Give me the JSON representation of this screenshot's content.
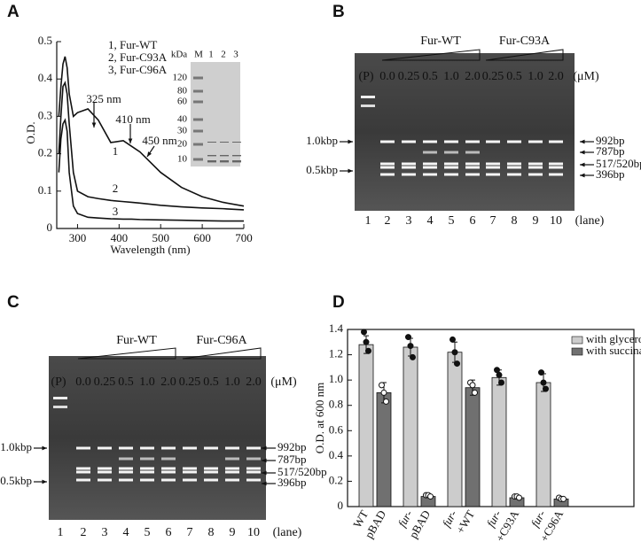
{
  "panel_labels": [
    "A",
    "B",
    "C",
    "D"
  ],
  "chart_data": [
    {
      "type": "line",
      "x_label": "Wavelength (nm)",
      "y_label": "O.D.",
      "x": [
        255,
        260,
        265,
        270,
        275,
        280,
        290,
        300,
        325,
        350,
        380,
        410,
        430,
        450,
        500,
        550,
        600,
        650,
        700
      ],
      "series": [
        {
          "name": "1, Fur-WT",
          "color": "#111111",
          "values": [
            0.3,
            0.38,
            0.44,
            0.46,
            0.43,
            0.36,
            0.3,
            0.31,
            0.32,
            0.29,
            0.23,
            0.235,
            0.22,
            0.205,
            0.15,
            0.11,
            0.085,
            0.07,
            0.06
          ]
        },
        {
          "name": "2, Fur-C93A",
          "color": "#111111",
          "values": [
            0.2,
            0.3,
            0.38,
            0.39,
            0.36,
            0.28,
            0.15,
            0.1,
            0.085,
            0.08,
            0.075,
            0.072,
            0.07,
            0.068,
            0.062,
            0.058,
            0.055,
            0.053,
            0.05
          ]
        },
        {
          "name": "3, Fur-C96A",
          "color": "#111111",
          "values": [
            0.15,
            0.24,
            0.28,
            0.29,
            0.26,
            0.15,
            0.06,
            0.04,
            0.03,
            0.028,
            0.026,
            0.025,
            0.025,
            0.024,
            0.023,
            0.022,
            0.021,
            0.02,
            0.02
          ]
        }
      ],
      "xlim": [
        250,
        700
      ],
      "xticks": [
        300,
        400,
        500,
        600,
        700
      ],
      "ylim": [
        0,
        0.5
      ],
      "yticks": [
        0,
        0.1,
        0.2,
        0.3,
        0.4,
        0.5
      ],
      "annotations": [
        "325 nm",
        "410 nm",
        "450 nm",
        "1",
        "2",
        "3"
      ],
      "inset": {
        "unit": "kDa",
        "lanes": [
          "M",
          "1",
          "2",
          "3"
        ],
        "markers": [
          120,
          80,
          60,
          40,
          30,
          20,
          10
        ]
      }
    },
    {
      "type": "bar",
      "y_label": "O.D. at 600 nm",
      "categories": [
        [
          "WT",
          "pBAD"
        ],
        [
          "fur-",
          "pBAD"
        ],
        [
          "fur-",
          "+WT"
        ],
        [
          "fur-",
          "+C93A"
        ],
        [
          "fur-",
          "+C96A"
        ]
      ],
      "series": [
        {
          "name": "with glycerol",
          "color": "#cccccc",
          "values": [
            1.28,
            1.26,
            1.22,
            1.02,
            0.98
          ],
          "errors": [
            0.07,
            0.07,
            0.08,
            0.06,
            0.07
          ],
          "points": [
            [
              1.38,
              1.3,
              1.23
            ],
            [
              1.34,
              1.27,
              1.18
            ],
            [
              1.32,
              1.22,
              1.13
            ],
            [
              1.08,
              1.04,
              0.98
            ],
            [
              1.06,
              0.98,
              0.93
            ]
          ]
        },
        {
          "name": "with succinate",
          "color": "#707070",
          "values": [
            0.9,
            0.08,
            0.94,
            0.07,
            0.06
          ],
          "errors": [
            0.08,
            0.01,
            0.06,
            0.01,
            0.01
          ],
          "points": [
            [
              0.96,
              0.9,
              0.83
            ],
            [
              0.09,
              0.09,
              0.08
            ],
            [
              0.98,
              0.96,
              0.9
            ],
            [
              0.08,
              0.08,
              0.07
            ],
            [
              0.07,
              0.06,
              0.06
            ]
          ]
        }
      ],
      "ylim": [
        0,
        1.4
      ],
      "yticks": [
        0,
        0.2,
        0.4,
        0.6,
        0.8,
        {
          "value": 1,
          "label": "1.0"
        },
        1.2,
        1.4
      ],
      "legend": "top-right"
    }
  ],
  "gels": [
    {
      "groups": [
        "Fur-WT",
        "Fur-C93A"
      ],
      "plasmid": "(P)",
      "concentrations": [
        "0.0",
        "0.25",
        "0.5",
        "1.0",
        "2.0",
        "0.25",
        "0.5",
        "1.0",
        "2.0"
      ],
      "unit": "(μM)",
      "size_markers": [
        "1.0kbp",
        "0.5kbp"
      ],
      "bands": [
        "992bp",
        "787bp",
        "517/520bp",
        "396bp"
      ],
      "lanes": [
        "1",
        "2",
        "3",
        "4",
        "5",
        "6",
        "7",
        "8",
        "9",
        "10"
      ],
      "lane_label": "(lane)"
    },
    {
      "groups": [
        "Fur-WT",
        "Fur-C96A"
      ],
      "plasmid": "(P)",
      "concentrations": [
        "0.0",
        "0.25",
        "0.5",
        "1.0",
        "2.0",
        "0.25",
        "0.5",
        "1.0",
        "2.0"
      ],
      "unit": "(μM)",
      "size_markers": [
        "1.0kbp",
        "0.5kbp"
      ],
      "bands": [
        "992bp",
        "787bp",
        "517/520bp",
        "396bp"
      ],
      "lanes": [
        "1",
        "2",
        "3",
        "4",
        "5",
        "6",
        "7",
        "8",
        "9",
        "10"
      ],
      "lane_label": "(lane)"
    }
  ]
}
